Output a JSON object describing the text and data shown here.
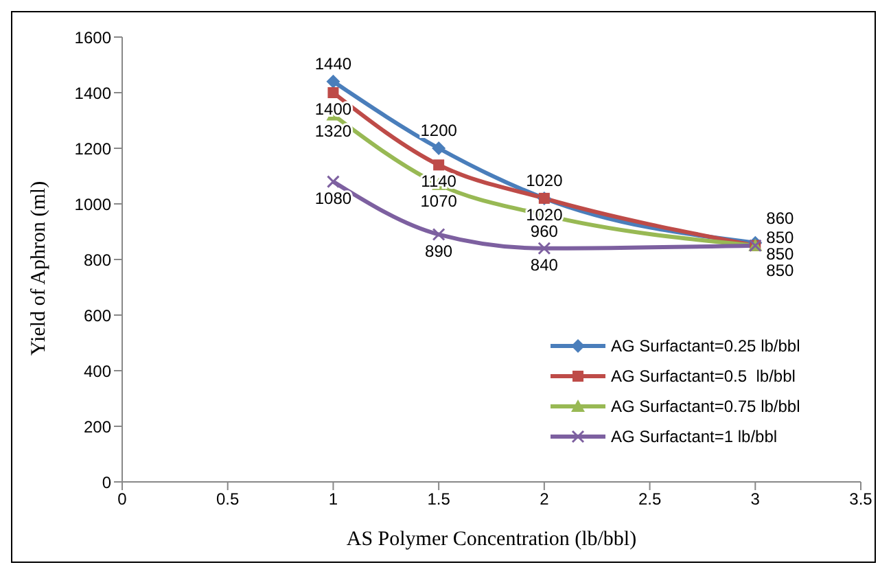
{
  "chart_data": {
    "type": "line",
    "xlabel": "AS Polymer Concentration (lb/bbl)",
    "ylabel": "Yield of Aphron (ml)",
    "x": [
      1,
      1.5,
      2,
      3
    ],
    "xlim": [
      0,
      3.5
    ],
    "xticks": [
      0,
      0.5,
      1,
      1.5,
      2,
      2.5,
      3,
      3.5
    ],
    "ylim": [
      0,
      1600
    ],
    "yticks": [
      0,
      200,
      400,
      600,
      800,
      1000,
      1200,
      1400,
      1600
    ],
    "grid": false,
    "legend": "right",
    "data_labels": true,
    "series": [
      {
        "name": "AG Surfactant=0.25 lb/bbl",
        "color": "#4a7ebb",
        "marker": "diamond",
        "values": [
          1440,
          1200,
          1020,
          860
        ]
      },
      {
        "name": "AG Surfactant=0.5  lb/bbl",
        "color": "#be4b48",
        "marker": "square",
        "values": [
          1400,
          1140,
          1020,
          850
        ]
      },
      {
        "name": "AG Surfactant=0.75 lb/bbl",
        "color": "#98b954",
        "marker": "triangle",
        "values": [
          1320,
          1070,
          960,
          850
        ]
      },
      {
        "name": "AG Surfactant=1 lb/bbl",
        "color": "#7d60a0",
        "marker": "cross",
        "values": [
          1080,
          890,
          840,
          850
        ]
      }
    ]
  }
}
